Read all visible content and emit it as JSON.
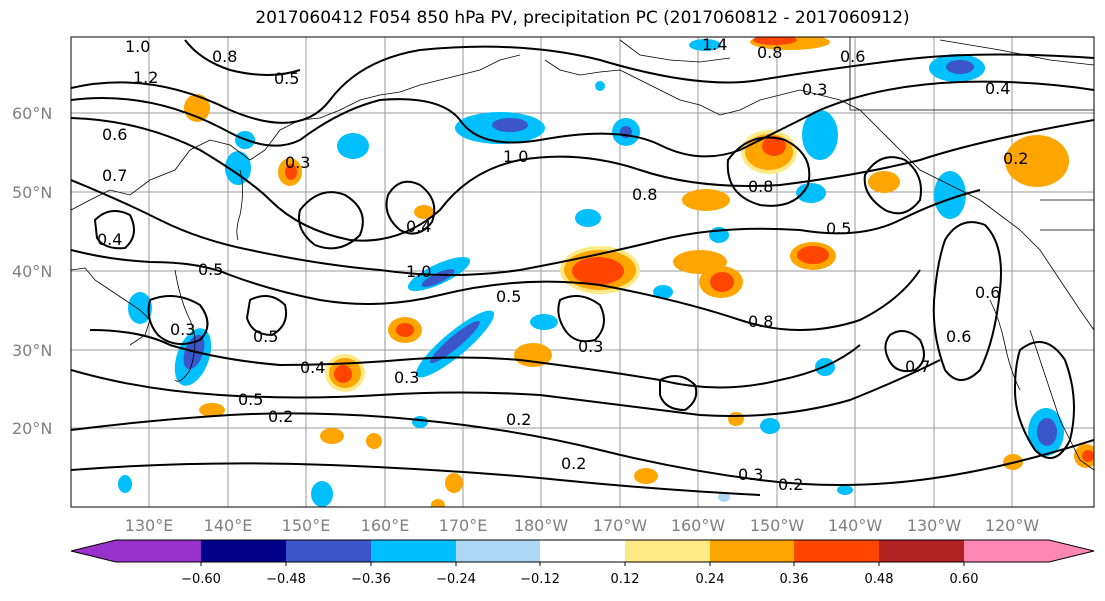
{
  "title": "2017060412 F054 850 hPa PV, precipitation PC (2017060812 - 2017060912)",
  "map": {
    "lat_labels": [
      "60°N",
      "50°N",
      "40°N",
      "30°N",
      "20°N"
    ],
    "lon_labels": [
      "130°E",
      "140°E",
      "150°E",
      "160°E",
      "170°E",
      "180°W",
      "170°W",
      "160°W",
      "150°W",
      "140°W",
      "130°W",
      "120°W"
    ],
    "contour_labels": [
      "1.0",
      "1.2",
      "0.8",
      "0.5",
      "0.6",
      "0.7",
      "0.4",
      "0.3",
      "1.4",
      "0.8",
      "0.6",
      "0.3",
      "0.4",
      "0.2",
      "1.0",
      "0.8",
      "0.5",
      "0.8",
      "0.3",
      "0.4",
      "0.5",
      "0.7",
      "0.6",
      "0.3",
      "0.2",
      "0.2",
      "0.3",
      "0.2",
      "0.5",
      "0.4",
      "0.3",
      "0.5",
      "0.8",
      "0.2",
      "0.6",
      "0.5",
      "1.0"
    ]
  },
  "colorbar": {
    "ticks": [
      "−0.60",
      "−0.48",
      "−0.36",
      "−0.24",
      "−0.12",
      "0.12",
      "0.24",
      "0.36",
      "0.48",
      "0.60"
    ],
    "colors": [
      "#9932cc",
      "#00008b",
      "#3a56c8",
      "#00bfff",
      "#add8f5",
      "#ffffff",
      "#ffe985",
      "#ffa500",
      "#ff4500",
      "#b22222",
      "#ff87b4"
    ]
  }
}
